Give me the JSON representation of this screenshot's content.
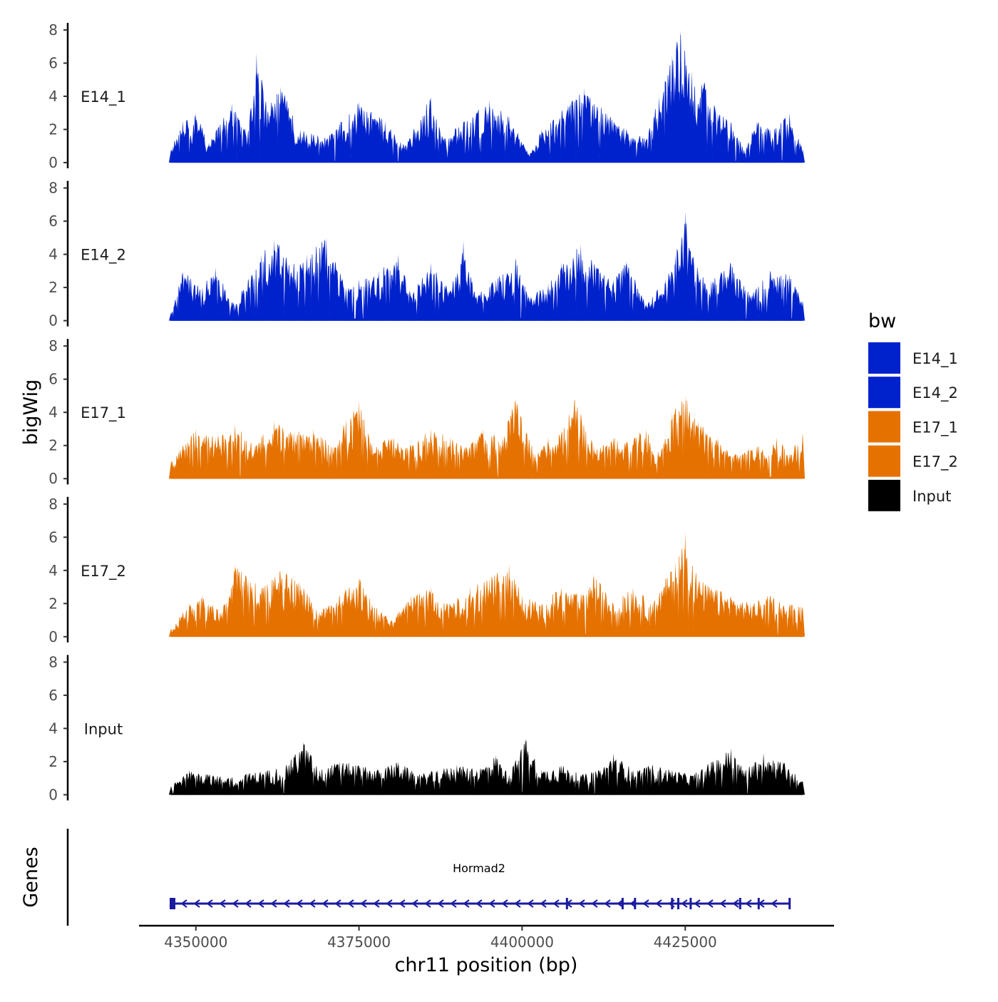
{
  "chart_data": {
    "type": "area",
    "title": "",
    "region": {
      "chromosome": "chr11",
      "start": 4346200,
      "end": 4443000
    },
    "ylabel": "bigWig",
    "xlabel": "chr11 position (bp)",
    "ylim": [
      0,
      8
    ],
    "y_ticks": [
      0,
      2,
      4,
      6,
      8
    ],
    "x_ticks": [
      4350000,
      4375000,
      4400000,
      4425000
    ],
    "x_tick_labels": [
      "4350000",
      "4375000",
      "4400000",
      "4425000"
    ],
    "grid": false,
    "legend": {
      "title": "bw",
      "position": "right",
      "entries": [
        {
          "name": "E14_1",
          "color": "#0022cc"
        },
        {
          "name": "E14_2",
          "color": "#0022cc"
        },
        {
          "name": "E17_1",
          "color": "#e57200"
        },
        {
          "name": "E17_2",
          "color": "#e57200"
        },
        {
          "name": "Input",
          "color": "#000000"
        }
      ]
    },
    "series": [
      {
        "name": "E14_1",
        "color": "#0022cc",
        "x": [
          4346200,
          4348000,
          4350000,
          4352000,
          4355500,
          4358000,
          4359300,
          4361000,
          4363000,
          4366000,
          4370000,
          4375000,
          4379000,
          4382000,
          4386000,
          4388000,
          4391000,
          4395000,
          4398000,
          4401000,
          4403000,
          4407000,
          4409500,
          4413000,
          4416000,
          4419000,
          4421000,
          4423000,
          4424300,
          4426000,
          4428000,
          4430000,
          4432000,
          4434000,
          4436000,
          4438000,
          4441000,
          4443000
        ],
        "values": [
          0.8,
          2.5,
          3.0,
          1.2,
          3.6,
          1.8,
          6.6,
          3.2,
          4.6,
          2.0,
          1.5,
          3.7,
          2.5,
          1.0,
          4.0,
          1.5,
          2.5,
          3.8,
          2.8,
          0.5,
          2.0,
          3.5,
          4.5,
          3.0,
          2.0,
          1.5,
          4.0,
          6.5,
          8.0,
          5.5,
          4.8,
          3.0,
          2.5,
          0.8,
          2.5,
          2.0,
          3.0,
          0.8
        ]
      },
      {
        "name": "E14_2",
        "color": "#0022cc",
        "x": [
          4346200,
          4348000,
          4351000,
          4353000,
          4356000,
          4358000,
          4360000,
          4362000,
          4365000,
          4367000,
          4370000,
          4373000,
          4375000,
          4378000,
          4381000,
          4383000,
          4386000,
          4389000,
          4391000,
          4393000,
          4396000,
          4399000,
          4401000,
          4404000,
          4406000,
          4409000,
          4412000,
          4414000,
          4416000,
          4419000,
          4422000,
          4423500,
          4425000,
          4427000,
          4429000,
          4432000,
          4435000,
          4438000,
          4441000,
          4443000
        ],
        "values": [
          0.5,
          3.0,
          2.0,
          3.2,
          1.0,
          2.5,
          4.0,
          4.9,
          3.5,
          4.0,
          5.0,
          2.0,
          2.5,
          3.0,
          4.0,
          1.5,
          3.5,
          1.8,
          4.8,
          1.5,
          2.5,
          3.8,
          1.5,
          2.2,
          3.5,
          4.6,
          3.0,
          2.5,
          3.6,
          1.0,
          2.5,
          4.0,
          6.6,
          3.0,
          2.4,
          3.5,
          1.5,
          3.0,
          2.8,
          1.2
        ]
      },
      {
        "name": "E17_1",
        "color": "#e57200",
        "x": [
          4346200,
          4348000,
          4350000,
          4353000,
          4356000,
          4359000,
          4362000,
          4365000,
          4368000,
          4371000,
          4373000,
          4375000,
          4377000,
          4380000,
          4383000,
          4386000,
          4389000,
          4392000,
          4394000,
          4397000,
          4399000,
          4402000,
          4404000,
          4406000,
          4408000,
          4411000,
          4414000,
          4416000,
          4419000,
          4421000,
          4423000,
          4425000,
          4427000,
          4430000,
          4433000,
          4436000,
          4439000,
          4441000,
          4443000
        ],
        "values": [
          1.0,
          2.0,
          3.0,
          2.5,
          3.3,
          2.0,
          3.5,
          2.8,
          3.0,
          2.0,
          3.6,
          4.7,
          2.0,
          2.5,
          2.0,
          3.0,
          2.5,
          2.0,
          3.0,
          2.5,
          4.8,
          1.5,
          2.5,
          2.8,
          4.8,
          2.0,
          2.5,
          2.2,
          3.0,
          1.5,
          4.0,
          5.0,
          3.5,
          2.5,
          1.5,
          2.0,
          2.5,
          1.5,
          2.8
        ]
      },
      {
        "name": "E17_2",
        "color": "#e57200",
        "x": [
          4346200,
          4349000,
          4351000,
          4354000,
          4356000,
          4358000,
          4360000,
          4363000,
          4366000,
          4369000,
          4372000,
          4375000,
          4377000,
          4380000,
          4383000,
          4386000,
          4389000,
          4392000,
          4395000,
          4398000,
          4400000,
          4403000,
          4406000,
          4409000,
          4411000,
          4414000,
          4417000,
          4420000,
          4422000,
          4423500,
          4425000,
          4427000,
          4429000,
          4432000,
          4435000,
          4438000,
          4441000,
          4443000
        ],
        "values": [
          0.5,
          2.0,
          2.5,
          1.5,
          4.4,
          3.5,
          3.0,
          4.0,
          3.2,
          1.5,
          2.5,
          3.6,
          2.0,
          1.0,
          2.5,
          3.0,
          2.0,
          3.0,
          3.5,
          4.4,
          2.5,
          2.0,
          3.0,
          2.5,
          3.8,
          2.0,
          3.0,
          2.0,
          3.5,
          4.5,
          6.3,
          3.5,
          3.0,
          2.5,
          2.0,
          2.5,
          2.0,
          1.8
        ]
      },
      {
        "name": "Input",
        "color": "#000000",
        "x": [
          4346200,
          4349000,
          4352000,
          4355000,
          4358000,
          4361000,
          4364000,
          4366500,
          4369000,
          4372000,
          4375000,
          4378000,
          4381000,
          4384000,
          4387000,
          4390000,
          4393000,
          4396000,
          4398000,
          4400500,
          4403000,
          4406000,
          4409000,
          4412000,
          4414000,
          4417000,
          4420000,
          4423000,
          4426000,
          4429000,
          4432000,
          4434000,
          4437000,
          4440000,
          4443000
        ],
        "values": [
          0.5,
          1.5,
          1.2,
          1.0,
          1.3,
          1.5,
          1.8,
          3.2,
          1.5,
          2.0,
          1.8,
          1.5,
          2.0,
          1.2,
          1.5,
          1.8,
          1.5,
          2.4,
          1.2,
          3.4,
          1.5,
          1.8,
          1.2,
          1.5,
          2.5,
          1.5,
          1.8,
          1.5,
          1.2,
          2.0,
          2.8,
          1.5,
          2.5,
          2.0,
          0.8
        ]
      }
    ],
    "gene_track": {
      "ylabel": "Genes",
      "genes": [
        {
          "name": "Hormad2",
          "start": 4346200,
          "end": 4441000,
          "strand": "-",
          "color": "#1a1aa0"
        }
      ]
    }
  }
}
